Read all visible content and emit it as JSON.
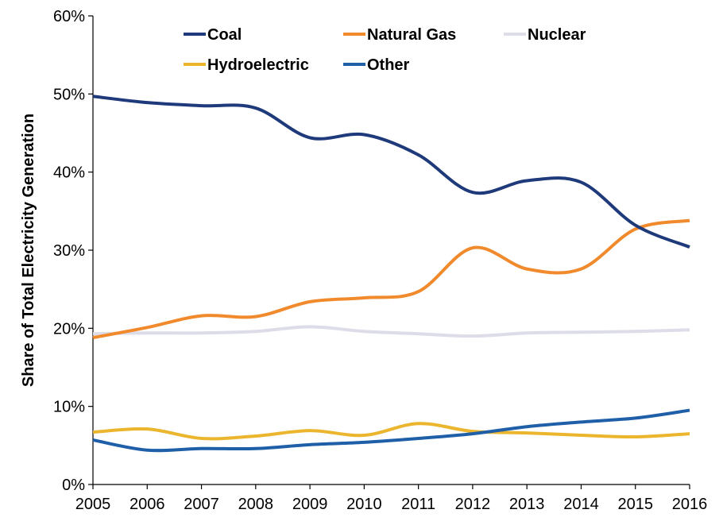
{
  "chart_data": {
    "type": "line",
    "title": "",
    "xlabel": "",
    "ylabel": "Share of Total Electricity Generation",
    "x": [
      2005,
      2006,
      2007,
      2008,
      2009,
      2010,
      2011,
      2012,
      2013,
      2014,
      2015,
      2016
    ],
    "x_tick_labels": [
      "2005",
      "2006",
      "2007",
      "2008",
      "2009",
      "2010",
      "2011",
      "2012",
      "2013",
      "2014",
      "2015",
      "2016"
    ],
    "ylim": [
      0,
      60
    ],
    "y_ticks": [
      0,
      10,
      20,
      30,
      40,
      50,
      60
    ],
    "y_tick_labels": [
      "0%",
      "10%",
      "20%",
      "30%",
      "40%",
      "50%",
      "60%"
    ],
    "grid": false,
    "legend_position": "top",
    "series": [
      {
        "name": "Coal",
        "color": "#1F3A7A",
        "values": [
          49.7,
          48.9,
          48.5,
          48.2,
          44.4,
          44.8,
          42.2,
          37.4,
          38.9,
          38.7,
          33.2,
          30.4
        ]
      },
      {
        "name": "Natural Gas",
        "color": "#F08A2C",
        "values": [
          18.8,
          20.1,
          21.6,
          21.5,
          23.4,
          23.9,
          24.7,
          30.3,
          27.6,
          27.6,
          32.7,
          33.8
        ]
      },
      {
        "name": "Nuclear",
        "color": "#DCDDE8",
        "values": [
          19.3,
          19.4,
          19.4,
          19.6,
          20.2,
          19.6,
          19.3,
          19.0,
          19.4,
          19.5,
          19.6,
          19.8
        ]
      },
      {
        "name": "Hydroelectric",
        "color": "#EBB52E",
        "values": [
          6.7,
          7.1,
          5.9,
          6.2,
          6.9,
          6.3,
          7.8,
          6.8,
          6.6,
          6.3,
          6.1,
          6.5
        ]
      },
      {
        "name": "Other",
        "color": "#1F5FA8",
        "values": [
          5.7,
          4.4,
          4.6,
          4.6,
          5.1,
          5.4,
          5.9,
          6.5,
          7.4,
          8.0,
          8.5,
          9.5
        ]
      }
    ]
  }
}
